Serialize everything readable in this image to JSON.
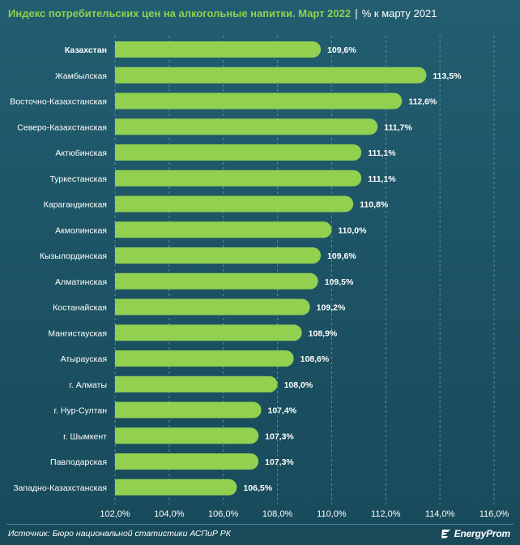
{
  "title": "Индекс потребительских цен на алкогольные напитки. Март 2022",
  "title_separator": "|",
  "subtitle": "% к марту 2021",
  "source": "Источник: Бюро национальной статистики АСПиР РК",
  "brand": {
    "name": "EnergyProm",
    "logo_icon": "energyprom-logo-icon"
  },
  "colors": {
    "bar": "#92d050",
    "grid": "#5a8d9b",
    "text": "#ffffff",
    "accent": "#8fd14f"
  },
  "chart_data": {
    "type": "bar",
    "orientation": "horizontal",
    "categories": [
      "Казахстан",
      "Жамбылская",
      "Восточно-Казахстанская",
      "Северо-Казахстанская",
      "Актюбинская",
      "Туркестанская",
      "Карагандинская",
      "Акмолинская",
      "Кызылординская",
      "Алматинская",
      "Костанайская",
      "Мангистауская",
      "Атырауская",
      "г. Алматы",
      "г. Нур-Султан",
      "г. Шымкент",
      "Павлодарская",
      "Западно-Казахстанская"
    ],
    "values": [
      109.6,
      113.5,
      112.6,
      111.7,
      111.1,
      111.1,
      110.8,
      110.0,
      109.6,
      109.5,
      109.2,
      108.9,
      108.6,
      108.0,
      107.4,
      107.3,
      107.3,
      106.5
    ],
    "value_labels": [
      "109,6%",
      "113,5%",
      "112,6%",
      "111,7%",
      "111,1%",
      "111,1%",
      "110,8%",
      "110,0%",
      "109,6%",
      "109,5%",
      "109,2%",
      "108,9%",
      "108,6%",
      "108,0%",
      "107,4%",
      "107,3%",
      "107,3%",
      "106,5%"
    ],
    "highlight_category": "Казахстан",
    "xlim": [
      102,
      116
    ],
    "xticks": [
      102,
      104,
      106,
      108,
      110,
      112,
      114,
      116
    ],
    "xtick_labels": [
      "102,0%",
      "104,0%",
      "106,0%",
      "108,0%",
      "110,0%",
      "112,0%",
      "114,0%",
      "116,0%"
    ],
    "grid": "vertical-dashed",
    "legend": "none"
  }
}
